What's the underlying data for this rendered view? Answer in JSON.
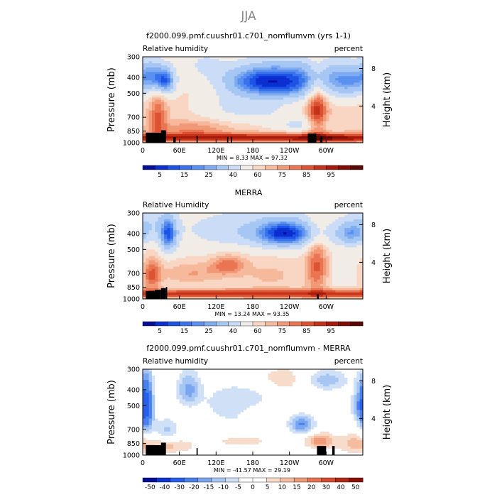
{
  "page_title": "JJA",
  "colors": {
    "rh_scale": [
      "#050e9a",
      "#0b2fd0",
      "#1c52e6",
      "#3a72ec",
      "#5a90ef",
      "#7fabf1",
      "#a6c6f4",
      "#cbdcf6",
      "#f2ece6",
      "#f9d6c3",
      "#f6b99b",
      "#f19876",
      "#ea7552",
      "#dc5333",
      "#c6311a",
      "#a61a0c",
      "#820d06",
      "#5c0502"
    ],
    "diff_scale": [
      "#050e9a",
      "#0d35d3",
      "#285fea",
      "#4a80ee",
      "#7aa6f1",
      "#a7c6f4",
      "#cfe0f7",
      "#ffffff",
      "#ffffff",
      "#f8dccb",
      "#f5bda0",
      "#ef9a78",
      "#e77150",
      "#d44b2d",
      "#b42916",
      "#8a1006"
    ]
  },
  "chart_data": [
    {
      "type": "heatmap",
      "title": "f2000.099.pmf.cuushr01.c701_nomflumvm (yrs 1-1)",
      "variable_label": "Relative humidity",
      "units_label": "percent",
      "ylabel": "Pressure (mb)",
      "y2label": "Height (km)",
      "y_ticks": [
        "300",
        "400",
        "500",
        "700",
        "850",
        "1000"
      ],
      "y_tick_values": [
        300,
        400,
        500,
        700,
        850,
        1000
      ],
      "y2_ticks": [
        "8",
        "4"
      ],
      "y2_tick_values": [
        8,
        4
      ],
      "x_ticks": [
        "0",
        "60E",
        "120E",
        "180",
        "120W",
        "60W"
      ],
      "x_tick_values": [
        0,
        60,
        120,
        180,
        240,
        300
      ],
      "xlim": [
        0,
        360
      ],
      "ylim": [
        1000,
        300
      ],
      "stats_text": "MIN =     8.33   MAX =    97.32",
      "colorbar_labels": [
        "5",
        "15",
        "25",
        "40",
        "60",
        "75",
        "85",
        "95"
      ],
      "levels": [
        5,
        10,
        15,
        20,
        25,
        30,
        40,
        50,
        60,
        65,
        70,
        75,
        80,
        85,
        90,
        95,
        99
      ],
      "features": {
        "base": 62,
        "blobs": [
          {
            "x": 230,
            "y": 430,
            "sx": 55,
            "sy": 80,
            "a": -48
          },
          {
            "x": 175,
            "y": 410,
            "sx": 40,
            "sy": 60,
            "a": -18
          },
          {
            "x": 290,
            "y": 360,
            "sx": 30,
            "sy": 60,
            "a": -10
          },
          {
            "x": 38,
            "y": 420,
            "sx": 12,
            "sy": 55,
            "a": -40
          },
          {
            "x": 15,
            "y": 380,
            "sx": 15,
            "sy": 60,
            "a": -25
          },
          {
            "x": 340,
            "y": 420,
            "sx": 25,
            "sy": 70,
            "a": -30
          },
          {
            "x": 100,
            "y": 330,
            "sx": 25,
            "sy": 50,
            "a": -12
          },
          {
            "x": 150,
            "y": 600,
            "sx": 40,
            "sy": 90,
            "a": -12
          },
          {
            "x": 205,
            "y": 650,
            "sx": 40,
            "sy": 60,
            "a": -8
          },
          {
            "x": 285,
            "y": 620,
            "sx": 12,
            "sy": 200,
            "a": 28
          },
          {
            "x": 25,
            "y": 700,
            "sx": 10,
            "sy": 140,
            "a": 20
          },
          {
            "x": 180,
            "y": 930,
            "sx": 400,
            "sy": 40,
            "a": 30
          },
          {
            "x": 80,
            "y": 820,
            "sx": 40,
            "sy": 60,
            "a": 12
          },
          {
            "x": 300,
            "y": 950,
            "sx": 40,
            "sy": 30,
            "a": 10
          },
          {
            "x": 260,
            "y": 780,
            "sx": 30,
            "sy": 60,
            "a": -15
          }
        ]
      },
      "terrain": [
        [
          5,
          35,
          870
        ],
        [
          30,
          38,
          840
        ],
        [
          50,
          54,
          925
        ],
        [
          88,
          90,
          905
        ],
        [
          138,
          140,
          920
        ],
        [
          144,
          146,
          920
        ],
        [
          270,
          284,
          880
        ],
        [
          290,
          294,
          905
        ]
      ]
    },
    {
      "type": "heatmap",
      "title": "MERRA",
      "variable_label": "Relative Humidity",
      "units_label": "percent",
      "ylabel": "Pressure (mb)",
      "y2label": "Height (km)",
      "y_ticks": [
        "300",
        "400",
        "500",
        "700",
        "850",
        "1000"
      ],
      "y_tick_values": [
        300,
        400,
        500,
        700,
        850,
        1000
      ],
      "y2_ticks": [
        "8",
        "4"
      ],
      "y2_tick_values": [
        8,
        4
      ],
      "x_ticks": [
        "0",
        "60E",
        "120E",
        "180",
        "120W",
        "60W"
      ],
      "x_tick_values": [
        0,
        60,
        120,
        180,
        240,
        300
      ],
      "xlim": [
        0,
        360
      ],
      "ylim": [
        1000,
        300
      ],
      "stats_text": "MIN =    13.24   MAX =    93.35",
      "colorbar_labels": [
        "5",
        "15",
        "25",
        "40",
        "60",
        "75",
        "85",
        "95"
      ],
      "levels": [
        5,
        10,
        15,
        20,
        25,
        30,
        40,
        50,
        60,
        65,
        70,
        75,
        80,
        85,
        90,
        95,
        99
      ],
      "features": {
        "base": 58,
        "blobs": [
          {
            "x": 235,
            "y": 400,
            "sx": 35,
            "sy": 55,
            "a": -48
          },
          {
            "x": 42,
            "y": 410,
            "sx": 10,
            "sy": 70,
            "a": -40
          },
          {
            "x": 340,
            "y": 400,
            "sx": 20,
            "sy": 50,
            "a": -30
          },
          {
            "x": 150,
            "y": 380,
            "sx": 60,
            "sy": 70,
            "a": -15
          },
          {
            "x": 15,
            "y": 340,
            "sx": 25,
            "sy": 60,
            "a": -12
          },
          {
            "x": 140,
            "y": 620,
            "sx": 20,
            "sy": 60,
            "a": 18
          },
          {
            "x": 80,
            "y": 700,
            "sx": 40,
            "sy": 80,
            "a": 12
          },
          {
            "x": 285,
            "y": 630,
            "sx": 12,
            "sy": 180,
            "a": 22
          },
          {
            "x": 15,
            "y": 720,
            "sx": 10,
            "sy": 120,
            "a": 22
          },
          {
            "x": 180,
            "y": 930,
            "sx": 400,
            "sy": 40,
            "a": 30
          },
          {
            "x": 210,
            "y": 720,
            "sx": 40,
            "sy": 120,
            "a": 8
          }
        ]
      },
      "terrain": [
        [
          5,
          23,
          895
        ],
        [
          20,
          30,
          880
        ],
        [
          30,
          38,
          860
        ],
        [
          38,
          40,
          845
        ],
        [
          285,
          288,
          935
        ]
      ]
    },
    {
      "type": "heatmap",
      "title": "f2000.099.pmf.cuushr01.c701_nomflumvm - MERRA",
      "variable_label": "Relative humidity",
      "units_label": "percent",
      "ylabel": "Pressure (mb)",
      "y2label": "Height (km)",
      "y_ticks": [
        "300",
        "400",
        "500",
        "700",
        "850",
        "1000"
      ],
      "y_tick_values": [
        300,
        400,
        500,
        700,
        850,
        1000
      ],
      "y2_ticks": [
        "8",
        "4"
      ],
      "y2_tick_values": [
        8,
        4
      ],
      "x_ticks": [
        "0",
        "60E",
        "120E",
        "180",
        "120W",
        "60W"
      ],
      "x_tick_values": [
        0,
        60,
        120,
        180,
        240,
        300
      ],
      "xlim": [
        0,
        360
      ],
      "ylim": [
        1000,
        300
      ],
      "stats_text": "MIN =   -41.57   MAX =    29.19",
      "colorbar_labels": [
        "-50",
        "-40",
        "-30",
        "-20",
        "-15",
        "-10",
        "-5",
        "0",
        "5",
        "10",
        "15",
        "20",
        "30",
        "40",
        "50"
      ],
      "levels": [
        -50,
        -40,
        -30,
        -20,
        -15,
        -10,
        -5,
        0,
        5,
        10,
        15,
        20,
        30,
        40,
        50
      ],
      "features": {
        "base": 1,
        "blobs": [
          {
            "x": 6,
            "y": 500,
            "sx": 8,
            "sy": 150,
            "a": -32
          },
          {
            "x": 75,
            "y": 400,
            "sx": 14,
            "sy": 70,
            "a": -18
          },
          {
            "x": 40,
            "y": 700,
            "sx": 15,
            "sy": 80,
            "a": -12
          },
          {
            "x": 130,
            "y": 550,
            "sx": 25,
            "sy": 120,
            "a": -10
          },
          {
            "x": 180,
            "y": 420,
            "sx": 30,
            "sy": 80,
            "a": -8
          },
          {
            "x": 260,
            "y": 650,
            "sx": 15,
            "sy": 60,
            "a": -22
          },
          {
            "x": 300,
            "y": 350,
            "sx": 25,
            "sy": 40,
            "a": -15
          },
          {
            "x": 355,
            "y": 500,
            "sx": 10,
            "sy": 90,
            "a": -15
          },
          {
            "x": 110,
            "y": 620,
            "sx": 20,
            "sy": 60,
            "a": 8
          },
          {
            "x": 290,
            "y": 820,
            "sx": 15,
            "sy": 60,
            "a": 18
          },
          {
            "x": 350,
            "y": 850,
            "sx": 20,
            "sy": 80,
            "a": 12
          },
          {
            "x": 220,
            "y": 350,
            "sx": 40,
            "sy": 50,
            "a": 8
          },
          {
            "x": 160,
            "y": 820,
            "sx": 40,
            "sy": 60,
            "a": 6
          },
          {
            "x": 45,
            "y": 880,
            "sx": 25,
            "sy": 60,
            "a": 10
          }
        ]
      },
      "terrain": [
        [
          5,
          35,
          870
        ],
        [
          30,
          38,
          840
        ],
        [
          88,
          90,
          905
        ],
        [
          285,
          300,
          880
        ],
        [
          310,
          314,
          880
        ]
      ]
    }
  ]
}
